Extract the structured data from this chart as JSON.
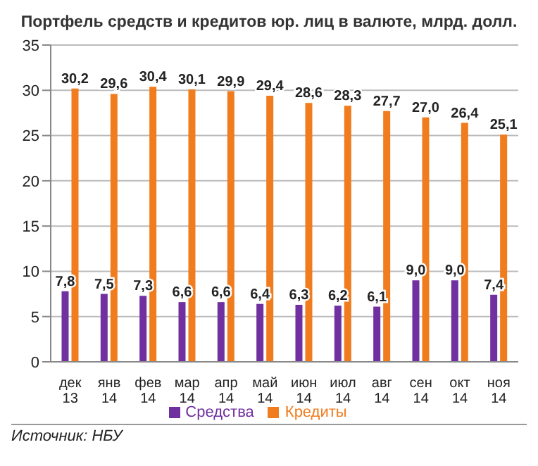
{
  "chart_data": {
    "type": "bar",
    "title": "Портфель средств и кредитов  юр. лиц в валюте,  млрд. долл.",
    "categories": [
      "дек 13",
      "янв 14",
      "фев 14",
      "мар 14",
      "апр 14",
      "май 14",
      "июн 14",
      "июл 14",
      "авг 14",
      "сен 14",
      "окт 14",
      "ноя 14"
    ],
    "series": [
      {
        "name": "Средства",
        "color": "#7030a0",
        "values": [
          7.8,
          7.5,
          7.3,
          6.6,
          6.6,
          6.4,
          6.3,
          6.2,
          6.1,
          9.0,
          9.0,
          7.4
        ],
        "value_labels": [
          "7,8",
          "7,5",
          "7,3",
          "6,6",
          "6,6",
          "6,4",
          "6,3",
          "6,2",
          "6,1",
          "9,0",
          "9,0",
          "7,4"
        ]
      },
      {
        "name": "Кредиты",
        "color": "#f07c1e",
        "values": [
          30.2,
          29.6,
          30.4,
          30.1,
          29.9,
          29.4,
          28.6,
          28.3,
          27.7,
          27.0,
          26.4,
          25.1
        ],
        "value_labels": [
          "30,2",
          "29,6",
          "30,4",
          "30,1",
          "29,9",
          "29,4",
          "28,6",
          "28,3",
          "27,7",
          "27,0",
          "26,4",
          "25,1"
        ]
      }
    ],
    "ylim": [
      0,
      35
    ],
    "yticks": [
      0,
      5,
      10,
      15,
      20,
      25,
      30,
      35
    ],
    "grid": "y",
    "legend": "bottom",
    "annotations": [
      "Источник: НБУ"
    ]
  }
}
